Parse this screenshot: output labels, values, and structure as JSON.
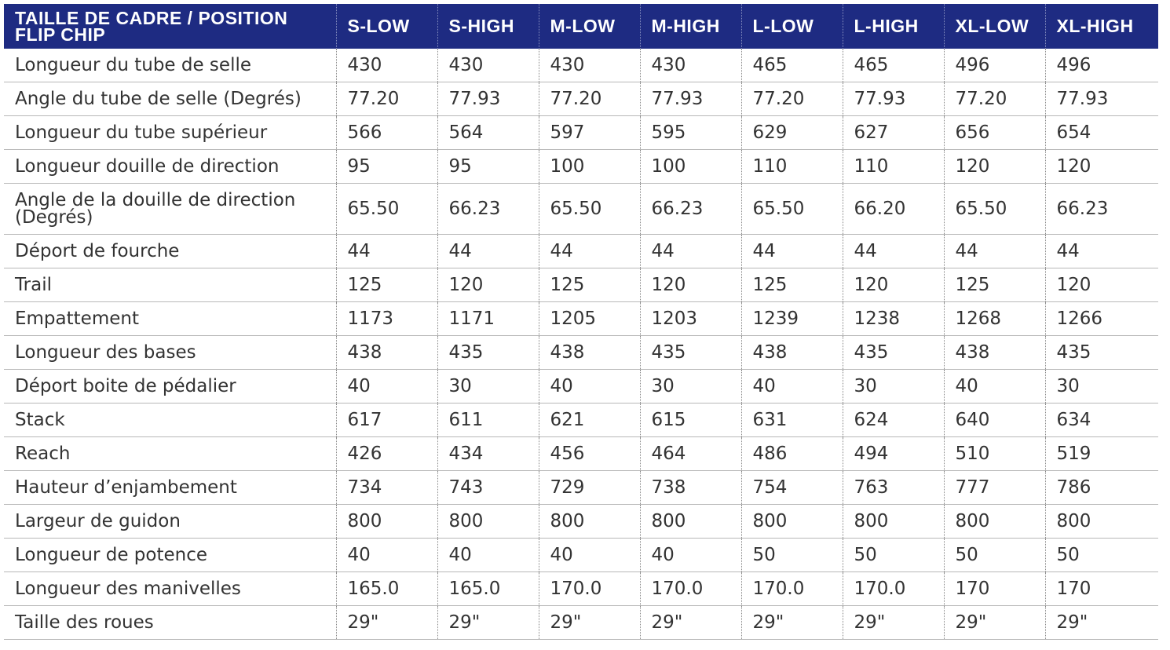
{
  "table": {
    "header": [
      "TAILLE DE CADRE / POSITION FLIP CHIP",
      "S-LOW",
      "S-HIGH",
      "M-LOW",
      "M-HIGH",
      "L-LOW",
      "L-HIGH",
      "XL-LOW",
      "XL-HIGH"
    ],
    "rows": [
      [
        "Longueur du tube de selle",
        "430",
        "430",
        "430",
        "430",
        "465",
        "465",
        "496",
        "496"
      ],
      [
        "Angle du tube de selle (Degrés)",
        "77.20",
        "77.93",
        "77.20",
        "77.93",
        "77.20",
        "77.93",
        "77.20",
        "77.93"
      ],
      [
        "Longueur du tube supérieur",
        "566",
        "564",
        "597",
        "595",
        "629",
        "627",
        "656",
        "654"
      ],
      [
        "Longueur douille de direction",
        "95",
        "95",
        "100",
        "100",
        "110",
        "110",
        "120",
        "120"
      ],
      [
        "Angle de la douille de direction (Degrés)",
        "65.50",
        "66.23",
        "65.50",
        "66.23",
        "65.50",
        "66.20",
        "65.50",
        "66.23"
      ],
      [
        "Déport de fourche",
        "44",
        "44",
        "44",
        "44",
        "44",
        "44",
        "44",
        "44"
      ],
      [
        "Trail",
        "125",
        "120",
        "125",
        "120",
        "125",
        "120",
        "125",
        "120"
      ],
      [
        "Empattement",
        "1173",
        "1171",
        "1205",
        "1203",
        "1239",
        "1238",
        "1268",
        "1266"
      ],
      [
        "Longueur des bases",
        "438",
        "435",
        "438",
        "435",
        "438",
        "435",
        "438",
        "435"
      ],
      [
        "Déport boite de pédalier",
        "40",
        "30",
        "40",
        "30",
        "40",
        "30",
        "40",
        "30"
      ],
      [
        "Stack",
        "617",
        "611",
        "621",
        "615",
        "631",
        "624",
        "640",
        "634"
      ],
      [
        "Reach",
        "426",
        "434",
        "456",
        "464",
        "486",
        "494",
        "510",
        "519"
      ],
      [
        "Hauteur d’enjambement",
        "734",
        "743",
        "729",
        "738",
        "754",
        "763",
        "777",
        "786"
      ],
      [
        "Largeur de guidon",
        "800",
        "800",
        "800",
        "800",
        "800",
        "800",
        "800",
        "800"
      ],
      [
        "Longueur de potence",
        "40",
        "40",
        "40",
        "40",
        "50",
        "50",
        "50",
        "50"
      ],
      [
        "Longueur des manivelles",
        "165.0",
        "165.0",
        "170.0",
        "170.0",
        "170.0",
        "170.0",
        "170",
        "170"
      ],
      [
        "Taille des roues",
        "29\"",
        "29\"",
        "29\"",
        "29\"",
        "29\"",
        "29\"",
        "29\"",
        "29\""
      ]
    ]
  }
}
